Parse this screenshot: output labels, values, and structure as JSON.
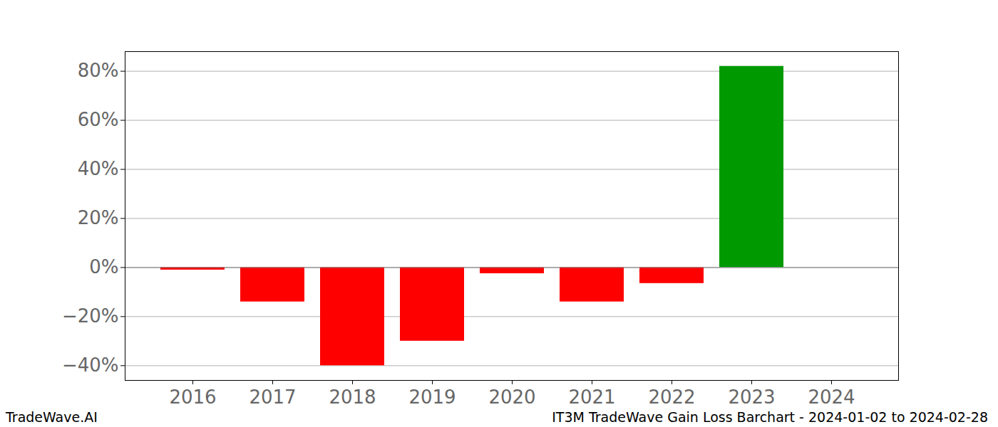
{
  "chart_data": {
    "type": "bar",
    "title": "IT3M TradeWave Gain Loss Barchart - 2024-01-02 to 2024-02-28",
    "annotations": [
      "TradeWave.AI"
    ],
    "categories": [
      "2016",
      "2017",
      "2018",
      "2019",
      "2020",
      "2021",
      "2022",
      "2023",
      "2024"
    ],
    "values": [
      -1,
      -14,
      -40,
      -30,
      -2.5,
      -14,
      -6.5,
      82,
      0
    ],
    "colors": [
      "#ff0000",
      "#ff0000",
      "#ff0000",
      "#ff0000",
      "#ff0000",
      "#ff0000",
      "#ff0000",
      "#009900",
      "#009900"
    ],
    "ylim": [
      -46,
      88
    ],
    "yticks": [
      {
        "value": -40,
        "label": "−40%"
      },
      {
        "value": -20,
        "label": "−20%"
      },
      {
        "value": 0,
        "label": "0%"
      },
      {
        "value": 20,
        "label": "20%"
      },
      {
        "value": 40,
        "label": "40%"
      },
      {
        "value": 60,
        "label": "60%"
      },
      {
        "value": 80,
        "label": "80%"
      }
    ],
    "grid": true
  }
}
